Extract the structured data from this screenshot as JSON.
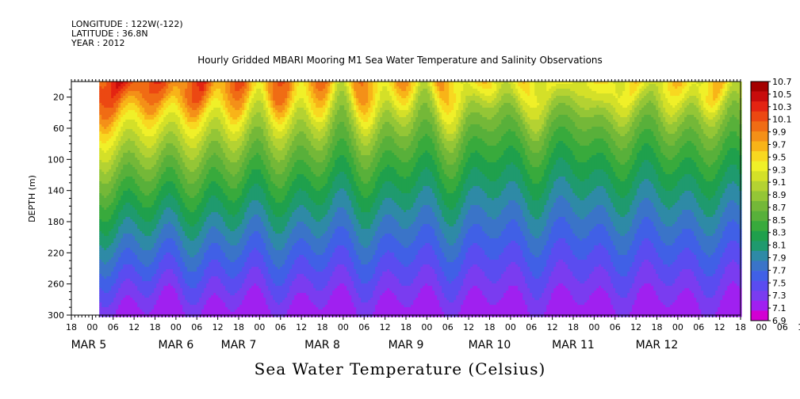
{
  "meta": {
    "longitude": "LONGITUDE : 122W(-122)",
    "latitude": "LATITUDE : 36.8N",
    "year": "YEAR : 2012"
  },
  "title": "Hourly Gridded MBARI Mooring M1 Sea Water Temperature and Salinity Observations",
  "bottom_title": "Sea Water Temperature (Celsius)",
  "colors": {
    "scale": [
      "#d200d2",
      "#a020f0",
      "#7a3cf0",
      "#5a4cf0",
      "#4060e6",
      "#3a74c8",
      "#2e8aa6",
      "#1f9a6e",
      "#1fa04c",
      "#38aa3c",
      "#58b03a",
      "#74b838",
      "#94c636",
      "#b4d232",
      "#d4e028",
      "#f0f028",
      "#f8d820",
      "#f8b418",
      "#f49018",
      "#f06c14",
      "#ec4812",
      "#e42412",
      "#c80c0c",
      "#a40000"
    ],
    "axis": "#000000"
  },
  "chart_data": {
    "type": "heatmap",
    "title": "Hourly Gridded MBARI Mooring M1 Sea Water Temperature and Salinity Observations",
    "xlabel": "",
    "ylabel": "DEPTH (m)",
    "y_reversed": true,
    "ylim": [
      0,
      300
    ],
    "y_ticks": [
      20,
      60,
      100,
      140,
      180,
      220,
      260,
      300
    ],
    "x_range_hours": [
      "2012-03-04 18:00",
      "2012-03-12 18:00"
    ],
    "x_tick_labels": [
      "18",
      "00",
      "06",
      "12",
      "18",
      "00",
      "06",
      "12",
      "18",
      "00",
      "06",
      "12",
      "18",
      "00",
      "06",
      "12",
      "18",
      "00",
      "06",
      "12",
      "18",
      "00",
      "06",
      "12",
      "18",
      "00",
      "06",
      "12",
      "18",
      "00",
      "06",
      "12",
      "18",
      "00",
      "06",
      "12",
      "18"
    ],
    "date_labels": [
      "MAR  5",
      "MAR  6",
      "MAR  7",
      "MAR  8",
      "MAR  9",
      "MAR 10",
      "MAR 11",
      "MAR 12"
    ],
    "data_start": "2012-03-05 02:00",
    "colorbar_levels": [
      "10.7",
      "10.5",
      "10.3",
      "10.1",
      "9.9",
      "9.7",
      "9.5",
      "9.3",
      "9.1",
      "8.9",
      "8.7",
      "8.5",
      "8.3",
      "8.1",
      "7.9",
      "7.7",
      "7.5",
      "7.3",
      "7.1",
      "6.9"
    ],
    "value_range": [
      6.9,
      10.7
    ],
    "surface_temperature_by_date": {
      "MAR 5": 10.3,
      "MAR 6": 10.1,
      "MAR 7": 9.9,
      "MAR 8": 9.7,
      "MAR 9": 9.6,
      "MAR 10": 9.4,
      "MAR 11": 9.4,
      "MAR 12": 9.5
    },
    "bottom_temperature": 7.1,
    "notes_units": "Celsius"
  }
}
